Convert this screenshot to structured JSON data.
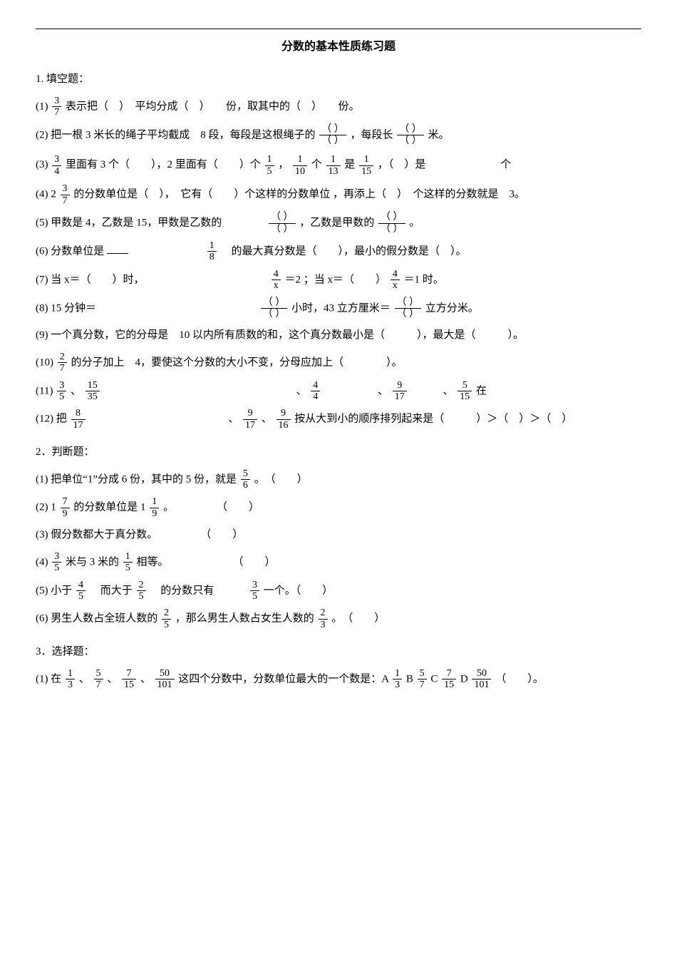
{
  "title": "分数的基本性质练习题",
  "s1": {
    "head": "1. 填空题：",
    "q1_a": "(1) ",
    "q1_frac": {
      "n": "3",
      "d": "7"
    },
    "q1_b": " 表示把（　）　平均分成（　）　　份，取其中的（　）　　份。",
    "q2": "(2) 把一根 3 米长的绳子平均截成　8 段，每段是这根绳子的 ",
    "q2_frac1": {
      "n": "（ ）",
      "d": "（ ）"
    },
    "q2_mid": " ，每段长",
    "q2_frac2": {
      "n": "（ ）",
      "d": "（ ）"
    },
    "q2_end": " 米。",
    "q3_a": "(3) ",
    "q3_f1": {
      "n": "3",
      "d": "4"
    },
    "q3_b": " 里面有 3 个（　　），2 里面有（　　）个",
    "q3_f2": {
      "n": "1",
      "d": "5"
    },
    "q3_c": "，",
    "q3_f3": {
      "n": "1",
      "d": "10"
    },
    "q3_d": " 个 ",
    "q3_f4": {
      "n": "1",
      "d": "13"
    },
    "q3_e": " 是",
    "q3_f5": {
      "n": "1",
      "d": "15"
    },
    "q3_f": " ，（　）是　　　　　　　个",
    "q4_a": "(4) 2",
    "q4_f1": {
      "n": "3",
      "d": "7"
    },
    "q4_b": " 的分数单位是（　），　它有（　　）个这样的分数单位 ，再添上（　）　个这样的分数就是　3。",
    "q5": "(5) 甲数是 4，乙数是 15，甲数是乙数的　　　　",
    "q5_f1": {
      "n": "（ ）",
      "d": "（ ）"
    },
    "q5_mid": " ，乙数是甲数的",
    "q5_f2": {
      "n": "（ ）",
      "d": "（ ）"
    },
    "q5_end": "。",
    "q6_a": "(6) 分数单位是",
    "q6_f1": {
      "n": "1",
      "d": "8"
    },
    "q6_b": "　的最大真分数是（　　），最小的假分数是（　）。",
    "q7_a": "(7) 当 x＝（　　）时，",
    "q7_f1": {
      "n": "4",
      "d": "x"
    },
    "q7_b": " ＝2 ；当 x＝（　　）",
    "q7_f2": {
      "n": "4",
      "d": "x"
    },
    "q7_c": "＝1 时。",
    "q8_a": "(8) 15 分钟＝",
    "q8_f1": {
      "n": "（ ）",
      "d": "（ ）"
    },
    "q8_b": " 小时，43 立方厘米＝",
    "q8_f2": {
      "n": "（ ）",
      "d": "（ ）"
    },
    "q8_c": " 立方分米。",
    "q9": "(9) 一个真分数，它的分母是　10 以内所有质数的和，这个真分数最小是（　　　），最大是（　　　）。",
    "q10_a": "(10) ",
    "q10_f": {
      "n": "2",
      "d": "7"
    },
    "q10_b": "的分子加上　4，要使这个分数的大小不变，分母应加上（　　　　）。",
    "q11_a": "(11) ",
    "q11_f1": {
      "n": "3",
      "d": "5"
    },
    "q11_c": "、",
    "q11_f2": {
      "n": "15",
      "d": "35"
    },
    "q11_d": "　　　　　　　　　　　　　　　　　　、",
    "q11_f3": {
      "n": "4",
      "d": "4"
    },
    "q11_e": "　　　　　、",
    "q11_f4": {
      "n": "9",
      "d": "17"
    },
    "q11_f": "　　　、",
    "q11_f5": {
      "n": "5",
      "d": "15"
    },
    "q11_g": " 在",
    "q12_a": "(12) 把",
    "q12_f1": {
      "n": "8",
      "d": "17"
    },
    "q12_b": "　　　　　　　　　　　　　、",
    "q12_f2": {
      "n": "9",
      "d": "17"
    },
    "q12_c": "、",
    "q12_f3": {
      "n": "9",
      "d": "16"
    },
    "q12_d": "按从大到小的顺序排列起来是（　　　）＞（　）＞（　）"
  },
  "s2": {
    "head": "2．判断题：",
    "q1_a": "(1) 把单位“1”分成 6 份，其中的 5 份，就是 ",
    "q1_f": {
      "n": "5",
      "d": "6"
    },
    "q1_b": " 。　（　　）",
    "q2_a": "(2) 1",
    "q2_f1": {
      "n": "7",
      "d": "9"
    },
    "q2_b": " 的分数单位是 1",
    "q2_f2": {
      "n": "1",
      "d": "9"
    },
    "q2_c": " 。　　　　　（　　）",
    "q3": "(3) 假分数都大于真分数。　　　　　（　　）",
    "q4_a": "(4) ",
    "q4_f1": {
      "n": "3",
      "d": "5"
    },
    "q4_b": " 米与 3 米的 ",
    "q4_f2": {
      "n": "1",
      "d": "5"
    },
    "q4_c": " 相等。　　　　　　　（　　）",
    "q5_a": "(5) 小于 ",
    "q5_f1": {
      "n": "4",
      "d": "5"
    },
    "q5_b": " 　而大于 ",
    "q5_f2": {
      "n": "2",
      "d": "5"
    },
    "q5_c": " 　的分数只有　　　",
    "q5_f3": {
      "n": "3",
      "d": "5"
    },
    "q5_d": " 一个。（　　）",
    "q6_a": "(6) 男生人数占全班人数的 ",
    "q6_f1": {
      "n": "2",
      "d": "5"
    },
    "q6_b": " ，那么男生人数占女生人数的 ",
    "q6_f2": {
      "n": "2",
      "d": "3"
    },
    "q6_c": " 。　（　　）"
  },
  "s3": {
    "head": "3．选择题：",
    "q1_a": "(1) 在 ",
    "q1_f1": {
      "n": "1",
      "d": "3"
    },
    "q1_b": "、",
    "q1_f2": {
      "n": "5",
      "d": "7"
    },
    "q1_c": "、",
    "q1_f3": {
      "n": "7",
      "d": "15"
    },
    "q1_d": "、",
    "q1_f4": {
      "n": "50",
      "d": "101"
    },
    "q1_e": "这四个分数中，分数单位最大的一个数是：A",
    "q1_fa": {
      "n": "1",
      "d": "3"
    },
    "q1_g": " B",
    "q1_fb": {
      "n": "5",
      "d": "7"
    },
    "q1_h": " C",
    "q1_fc": {
      "n": "7",
      "d": "15"
    },
    "q1_i": " D",
    "q1_fd": {
      "n": "50",
      "d": "101"
    },
    "q1_j": " （　　）。"
  }
}
